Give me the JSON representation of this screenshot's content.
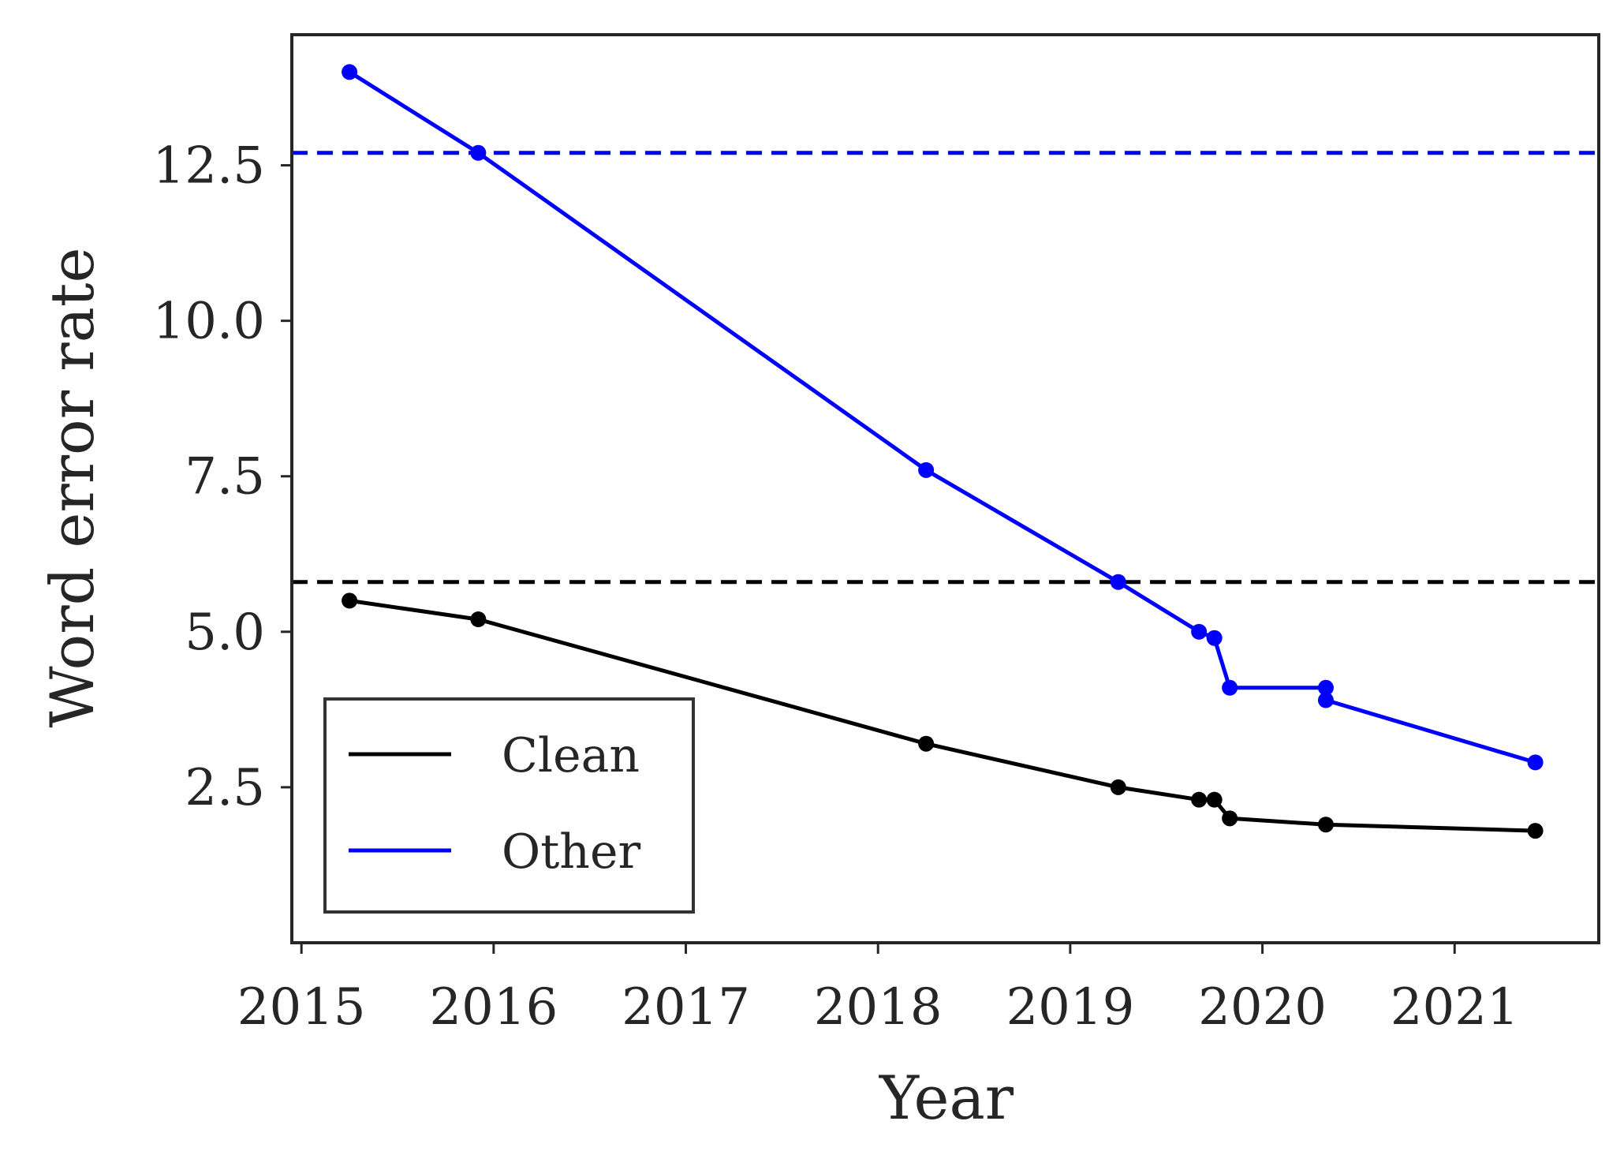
{
  "chart_data": {
    "type": "line",
    "title": "",
    "xlabel": "Year",
    "ylabel": "Word error rate",
    "xlim": [
      2014.95,
      2021.75
    ],
    "ylim": [
      0,
      14.6
    ],
    "x_ticks": [
      2015,
      2016,
      2017,
      2018,
      2019,
      2020,
      2021
    ],
    "x_tick_labels": [
      "2015",
      "2016",
      "2017",
      "2018",
      "2019",
      "2020",
      "2021"
    ],
    "y_ticks": [
      2.5,
      5.0,
      7.5,
      10.0,
      12.5
    ],
    "y_tick_labels": [
      "2.5",
      "5.0",
      "7.5",
      "10.0",
      "12.5"
    ],
    "grid": false,
    "legend_position": "lower-left",
    "series": [
      {
        "name": "Clean",
        "color": "#000000",
        "points": [
          {
            "x": 2015.25,
            "y": 5.5
          },
          {
            "x": 2015.92,
            "y": 5.2
          },
          {
            "x": 2018.25,
            "y": 3.2
          },
          {
            "x": 2019.25,
            "y": 2.5
          },
          {
            "x": 2019.67,
            "y": 2.3
          },
          {
            "x": 2019.75,
            "y": 2.3
          },
          {
            "x": 2019.83,
            "y": 2.0
          },
          {
            "x": 2020.33,
            "y": 1.9
          },
          {
            "x": 2021.42,
            "y": 1.8
          }
        ]
      },
      {
        "name": "Other",
        "color": "#0000ff",
        "points": [
          {
            "x": 2015.25,
            "y": 14.0
          },
          {
            "x": 2015.92,
            "y": 12.7
          },
          {
            "x": 2018.25,
            "y": 7.6
          },
          {
            "x": 2019.25,
            "y": 5.8
          },
          {
            "x": 2019.67,
            "y": 5.0
          },
          {
            "x": 2019.75,
            "y": 4.9
          },
          {
            "x": 2019.83,
            "y": 4.1
          },
          {
            "x": 2020.33,
            "y": 4.1
          },
          {
            "x": 2020.33,
            "y": 3.9
          },
          {
            "x": 2021.42,
            "y": 2.9
          }
        ]
      }
    ],
    "reference_lines": [
      {
        "y": 5.8,
        "color": "#000000",
        "style": "dashed"
      },
      {
        "y": 12.7,
        "color": "#0000ff",
        "style": "dashed"
      }
    ]
  }
}
